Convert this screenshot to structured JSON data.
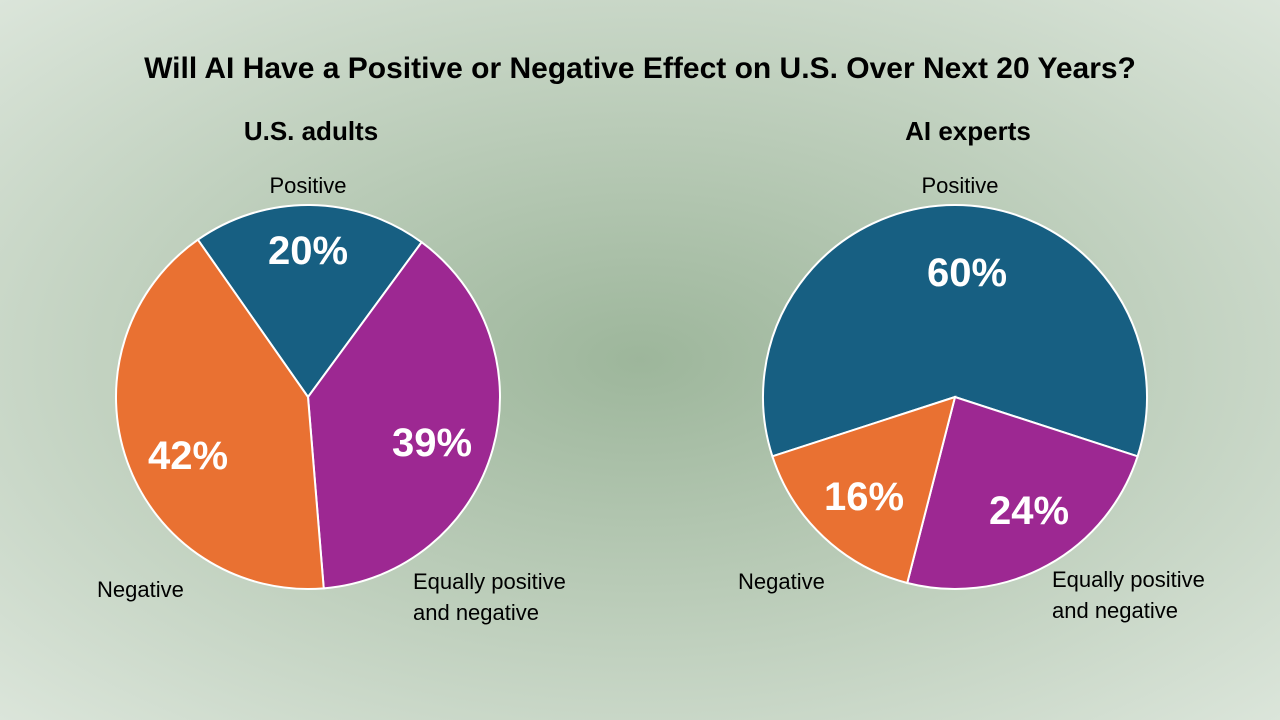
{
  "chart_data": {
    "type": "pie",
    "title": "Will AI Have a Positive or Negative Effect on U.S. Over Next 20 Years?",
    "colors": {
      "Positive": "#175f82",
      "Equally positive and negative": "#9d2892",
      "Negative": "#e97132"
    },
    "pies": [
      {
        "title": "U.S. adults",
        "slices": [
          {
            "label": "Positive",
            "value": 20,
            "value_label": "20%"
          },
          {
            "label_lines": [
              "Equally positive",
              "and negative"
            ],
            "label": "Equally positive and negative",
            "value": 39,
            "value_label": "39%"
          },
          {
            "label": "Negative",
            "value": 42,
            "value_label": "42%"
          }
        ]
      },
      {
        "title": "AI experts",
        "slices": [
          {
            "label": "Positive",
            "value": 60,
            "value_label": "60%"
          },
          {
            "label_lines": [
              "Equally positive",
              "and negative"
            ],
            "label": "Equally positive and negative",
            "value": 24,
            "value_label": "24%"
          },
          {
            "label": "Negative",
            "value": 16,
            "value_label": "16%"
          }
        ]
      }
    ]
  }
}
